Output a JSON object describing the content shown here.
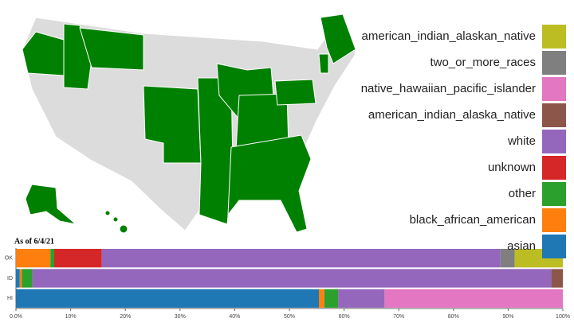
{
  "chart_data": {
    "type": "stacked-bar-horizontal",
    "annotation": "As of 6/4/21",
    "categories": [
      "OK",
      "ID",
      "HI"
    ],
    "xlim": [
      0,
      100
    ],
    "xticks": [
      {
        "value": 0,
        "label": "0.0%"
      },
      {
        "value": 10,
        "label": "10%"
      },
      {
        "value": 20,
        "label": "20%"
      },
      {
        "value": 30,
        "label": "30%"
      },
      {
        "value": 40,
        "label": "40%"
      },
      {
        "value": 50,
        "label": "50%"
      },
      {
        "value": 60,
        "label": "60%"
      },
      {
        "value": 70,
        "label": "70%"
      },
      {
        "value": 80,
        "label": "80%"
      },
      {
        "value": 90,
        "label": "90%"
      },
      {
        "value": 100,
        "label": "100%"
      }
    ],
    "legend": "right",
    "series": [
      {
        "name": "asian",
        "color": "#1f77b4",
        "values": [
          0,
          0.7,
          55.4
        ]
      },
      {
        "name": "black_african_american",
        "color": "#ff7f0e",
        "values": [
          6.3,
          0.4,
          1.0
        ]
      },
      {
        "name": "other",
        "color": "#2ca02c",
        "values": [
          0.7,
          1.9,
          2.5
        ]
      },
      {
        "name": "unknown",
        "color": "#d62728",
        "values": [
          8.7,
          0,
          0
        ]
      },
      {
        "name": "white",
        "color": "#9467bd",
        "values": [
          72.9,
          94.9,
          8.5
        ]
      },
      {
        "name": "american_indian_alaska_native",
        "color": "#8c564b",
        "values": [
          0,
          2.1,
          0
        ]
      },
      {
        "name": "native_hawaiian_pacific_islander",
        "color": "#e377c2",
        "values": [
          0,
          0,
          32.6
        ]
      },
      {
        "name": "two_or_more_races",
        "color": "#7f7f7f",
        "values": [
          2.6,
          0,
          0
        ]
      },
      {
        "name": "american_indian_alaskan_native",
        "color": "#bcbd22",
        "values": [
          8.8,
          0,
          0
        ]
      }
    ]
  }
}
